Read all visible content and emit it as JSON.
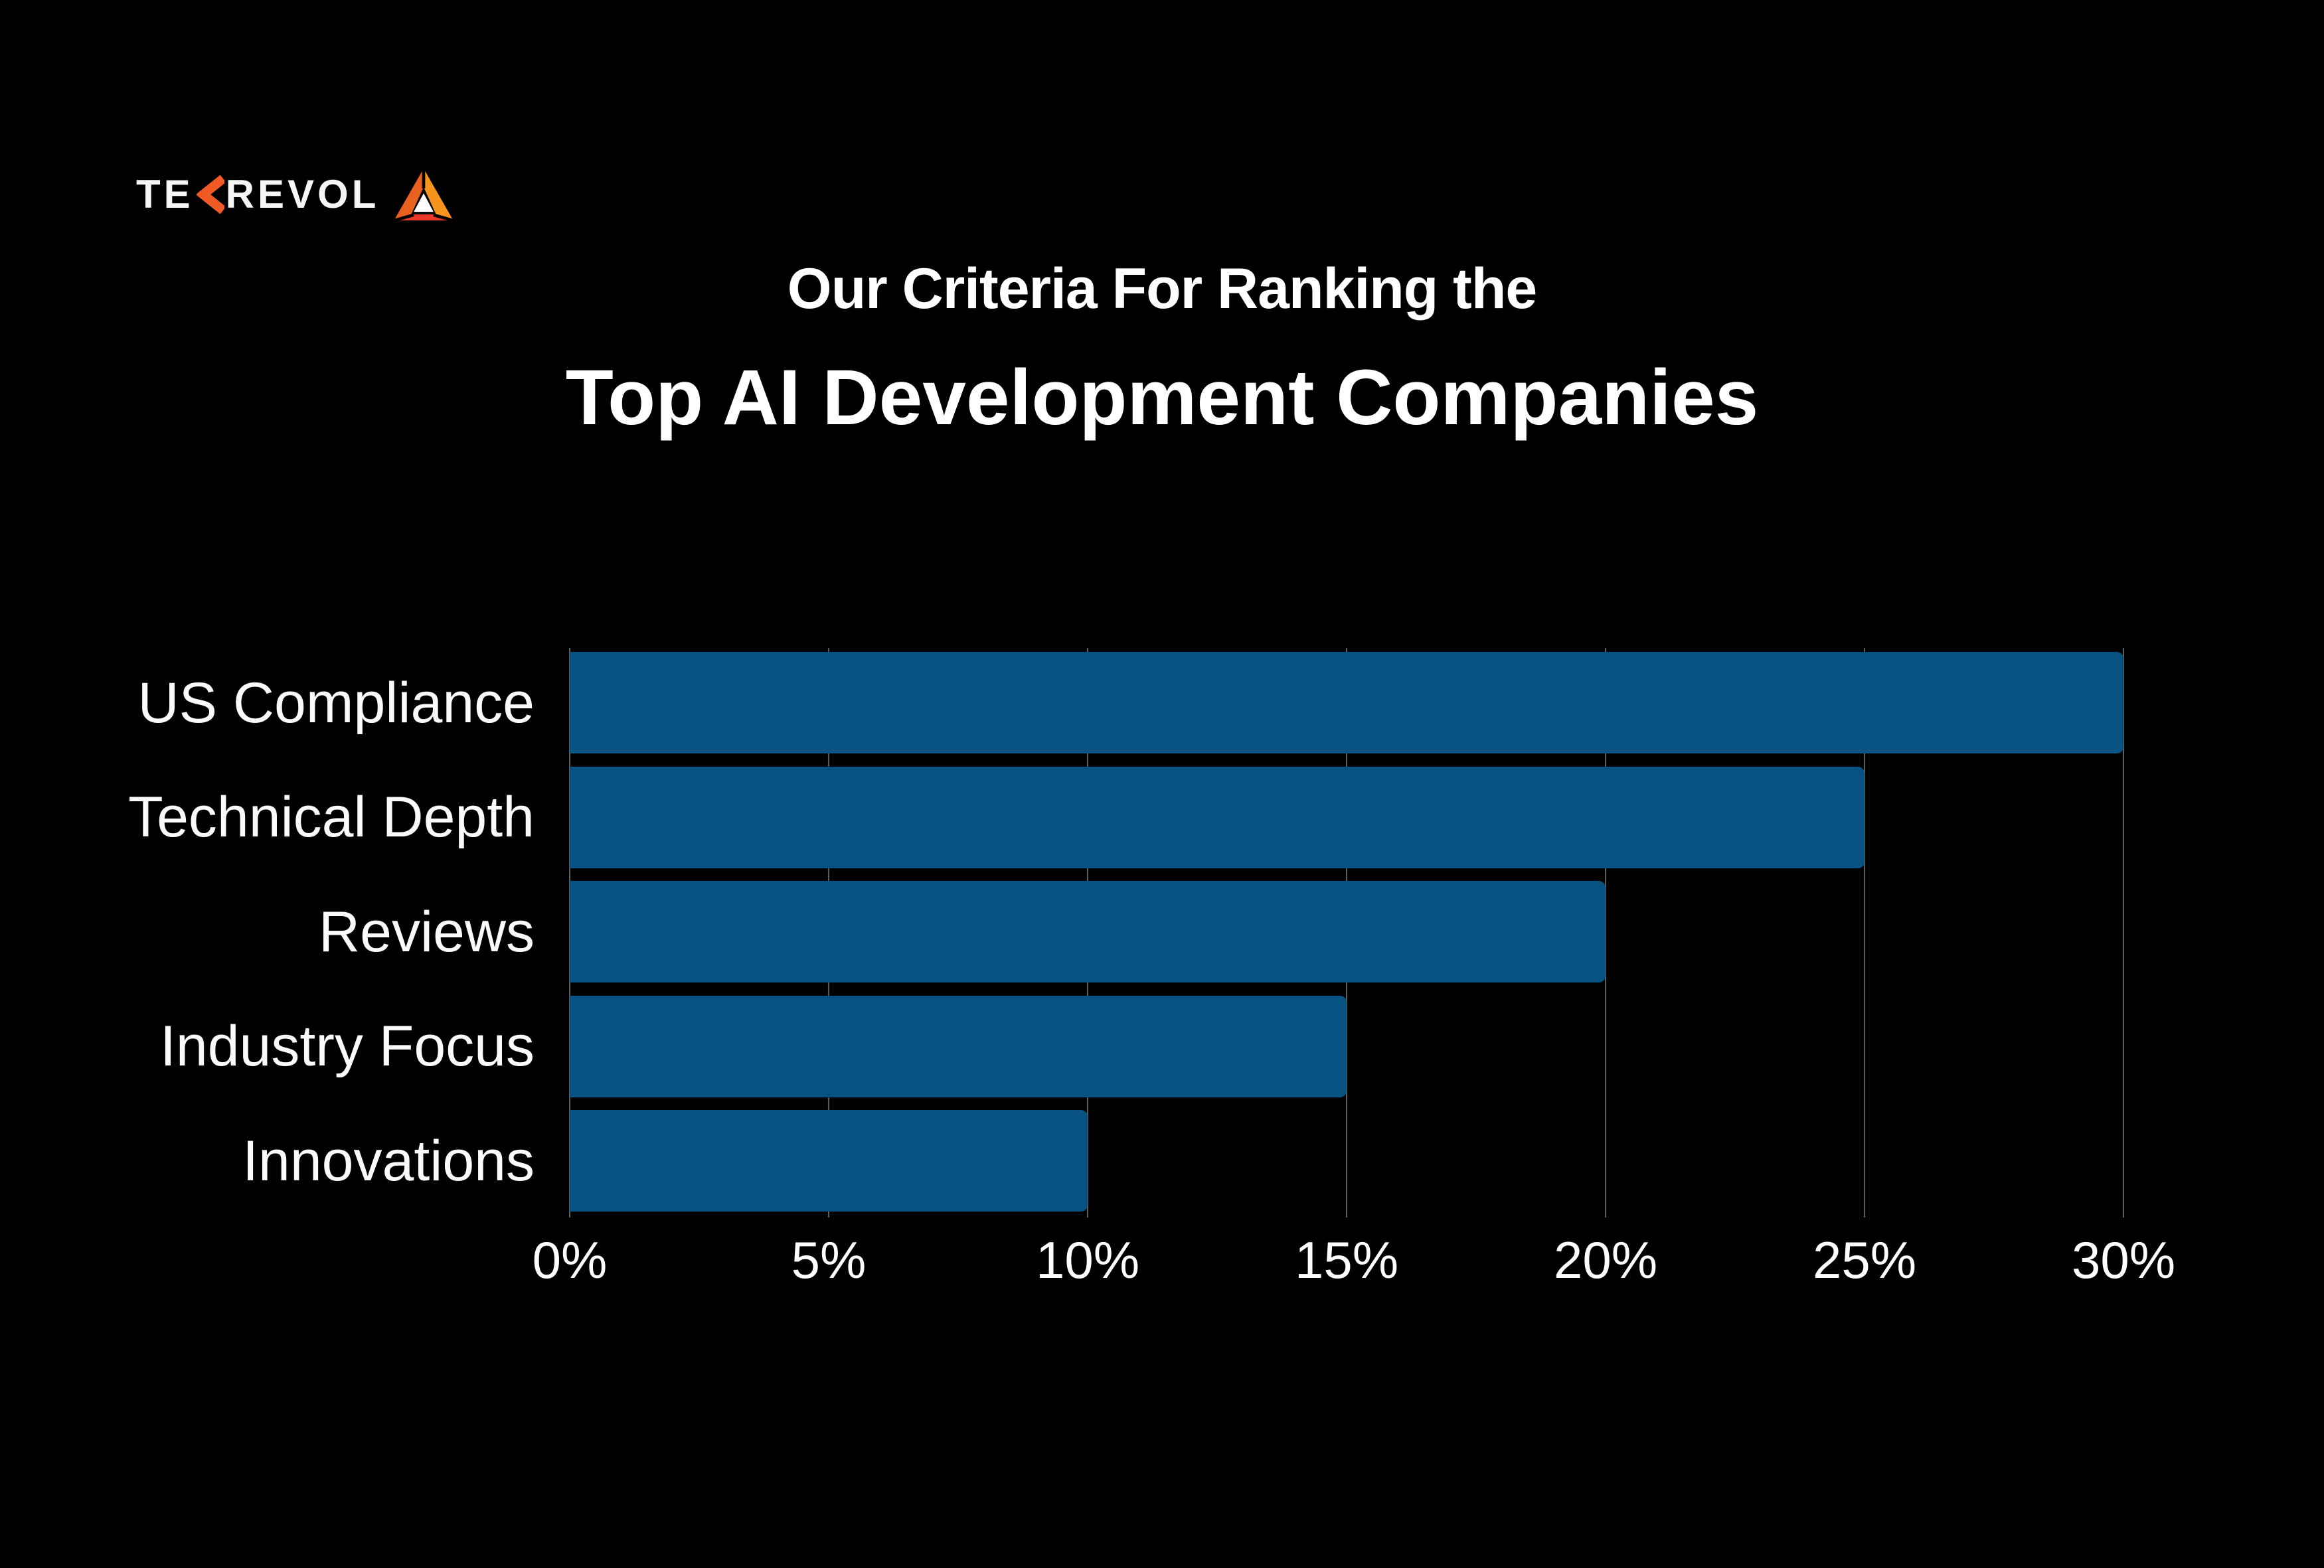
{
  "logo": {
    "brand_prefix": "TE",
    "brand_suffix": "REVOL",
    "colors": {
      "text": "#F5F5F5",
      "chevron_orange": "#F15A24",
      "triangle_orange_light": "#F7941E",
      "triangle_orange_dark": "#E8611F",
      "triangle_red": "#E8392B",
      "triangle_center": "#FFFFFF"
    }
  },
  "header": {
    "subtitle": "Our Criteria For Ranking the",
    "title": "Top AI Development Companies"
  },
  "chart_data": {
    "type": "bar",
    "orientation": "horizontal",
    "title": "Our Criteria For Ranking the Top AI Development Companies",
    "categories": [
      "US Compliance",
      "Technical Depth",
      "Reviews",
      "Industry Focus",
      "Innovations"
    ],
    "values": [
      30,
      25,
      20,
      15,
      10
    ],
    "unit": "%",
    "x_ticks": [
      "0%",
      "5%",
      "10%",
      "15%",
      "20%",
      "25%",
      "30%"
    ],
    "x_tick_values": [
      0,
      5,
      10,
      15,
      20,
      25,
      30
    ],
    "xlim": [
      0,
      30
    ],
    "xlabel": "",
    "ylabel": "",
    "grid": true,
    "legend": false,
    "bar_color": "#085381",
    "gridline_color": "#7D7D7D",
    "background": "#000000",
    "label_color": "#FFFFFF"
  }
}
